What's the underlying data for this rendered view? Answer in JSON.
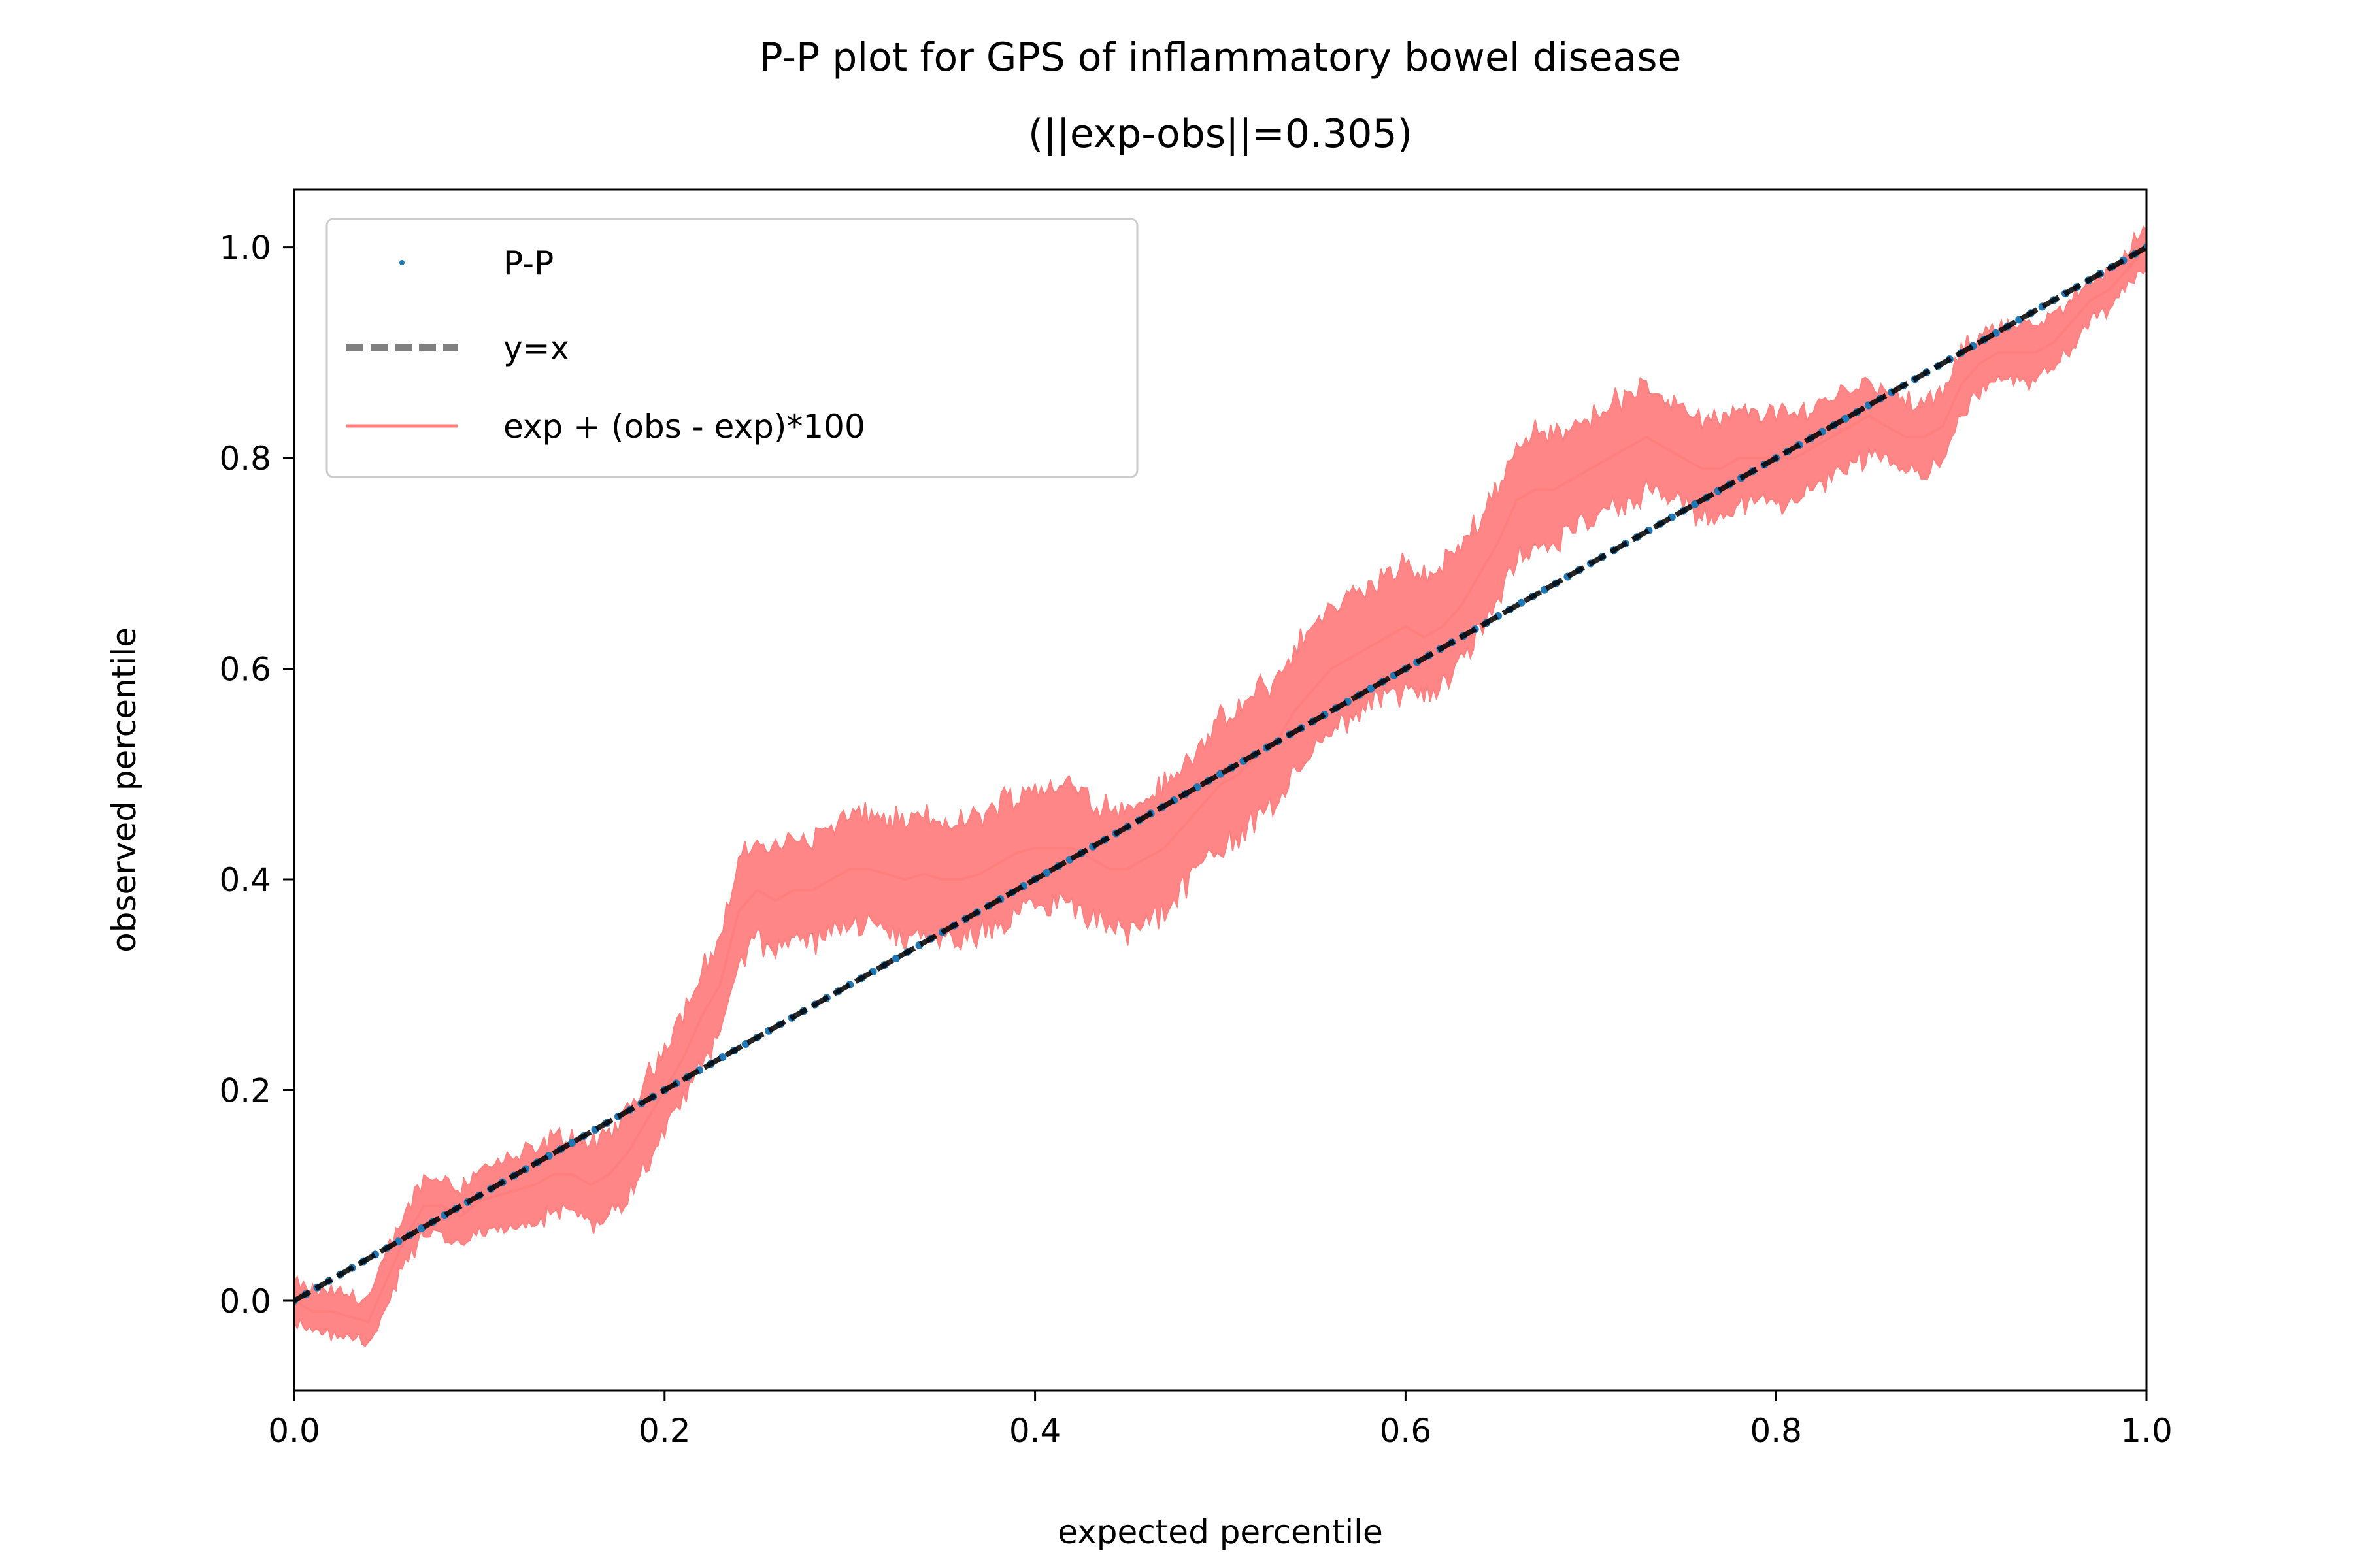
{
  "chart_data": {
    "type": "line",
    "title": "P-P plot for GPS of inflammatory bowel disease",
    "subtitle": "(||exp-obs||=0.305)",
    "xlabel": "expected percentile",
    "ylabel": "observed percentile",
    "xlim": [
      0.0,
      1.0
    ],
    "ylim": [
      -0.085,
      1.055
    ],
    "xticks": [
      "0.0",
      "0.2",
      "0.4",
      "0.6",
      "0.8",
      "1.0"
    ],
    "yticks": [
      "0.0",
      "0.2",
      "0.4",
      "0.6",
      "0.8",
      "1.0"
    ],
    "grid": false,
    "legend_position": "upper-left",
    "legend": [
      "P-P",
      "y=x",
      "exp + (obs - exp)*100"
    ],
    "series": [
      {
        "name": "P-P",
        "kind": "scatter",
        "color": "#1f77b4",
        "x": [
          0.0,
          1.0
        ],
        "y": [
          0.0,
          1.0
        ]
      },
      {
        "name": "y=x",
        "kind": "dashed-line",
        "color": "#000000",
        "legend_color": "#808080",
        "x": [
          0.0,
          1.0
        ],
        "y": [
          0.0,
          1.0
        ]
      },
      {
        "name": "exp + (obs - exp)*100",
        "kind": "line",
        "color": "#ff7f7f",
        "x": [
          0.0,
          0.01,
          0.02,
          0.03,
          0.04,
          0.05,
          0.06,
          0.07,
          0.08,
          0.09,
          0.1,
          0.11,
          0.12,
          0.13,
          0.14,
          0.15,
          0.16,
          0.17,
          0.18,
          0.19,
          0.2,
          0.21,
          0.22,
          0.23,
          0.24,
          0.25,
          0.26,
          0.27,
          0.28,
          0.29,
          0.3,
          0.31,
          0.32,
          0.33,
          0.34,
          0.35,
          0.36,
          0.37,
          0.38,
          0.39,
          0.4,
          0.41,
          0.42,
          0.43,
          0.44,
          0.45,
          0.46,
          0.47,
          0.48,
          0.49,
          0.5,
          0.51,
          0.52,
          0.53,
          0.54,
          0.55,
          0.56,
          0.57,
          0.58,
          0.59,
          0.6,
          0.61,
          0.62,
          0.63,
          0.64,
          0.65,
          0.66,
          0.67,
          0.68,
          0.69,
          0.7,
          0.71,
          0.72,
          0.73,
          0.74,
          0.75,
          0.76,
          0.77,
          0.78,
          0.79,
          0.8,
          0.81,
          0.82,
          0.83,
          0.84,
          0.85,
          0.86,
          0.87,
          0.88,
          0.89,
          0.9,
          0.91,
          0.92,
          0.93,
          0.94,
          0.95,
          0.96,
          0.97,
          0.98,
          0.99,
          1.0
        ],
        "y": [
          0.0,
          -0.01,
          -0.01,
          -0.015,
          -0.02,
          0.02,
          0.06,
          0.09,
          0.09,
          0.08,
          0.095,
          0.1,
          0.105,
          0.11,
          0.12,
          0.12,
          0.11,
          0.12,
          0.14,
          0.17,
          0.2,
          0.23,
          0.27,
          0.3,
          0.37,
          0.39,
          0.38,
          0.39,
          0.39,
          0.4,
          0.41,
          0.41,
          0.405,
          0.4,
          0.405,
          0.4,
          0.4,
          0.405,
          0.415,
          0.425,
          0.43,
          0.43,
          0.43,
          0.42,
          0.41,
          0.41,
          0.42,
          0.43,
          0.45,
          0.47,
          0.49,
          0.5,
          0.52,
          0.53,
          0.56,
          0.58,
          0.6,
          0.61,
          0.62,
          0.63,
          0.64,
          0.63,
          0.64,
          0.66,
          0.69,
          0.72,
          0.76,
          0.77,
          0.77,
          0.78,
          0.79,
          0.8,
          0.81,
          0.82,
          0.81,
          0.8,
          0.79,
          0.79,
          0.8,
          0.8,
          0.8,
          0.8,
          0.81,
          0.82,
          0.83,
          0.84,
          0.83,
          0.82,
          0.82,
          0.83,
          0.87,
          0.89,
          0.9,
          0.9,
          0.9,
          0.91,
          0.93,
          0.95,
          0.96,
          0.98,
          1.0
        ]
      }
    ]
  }
}
